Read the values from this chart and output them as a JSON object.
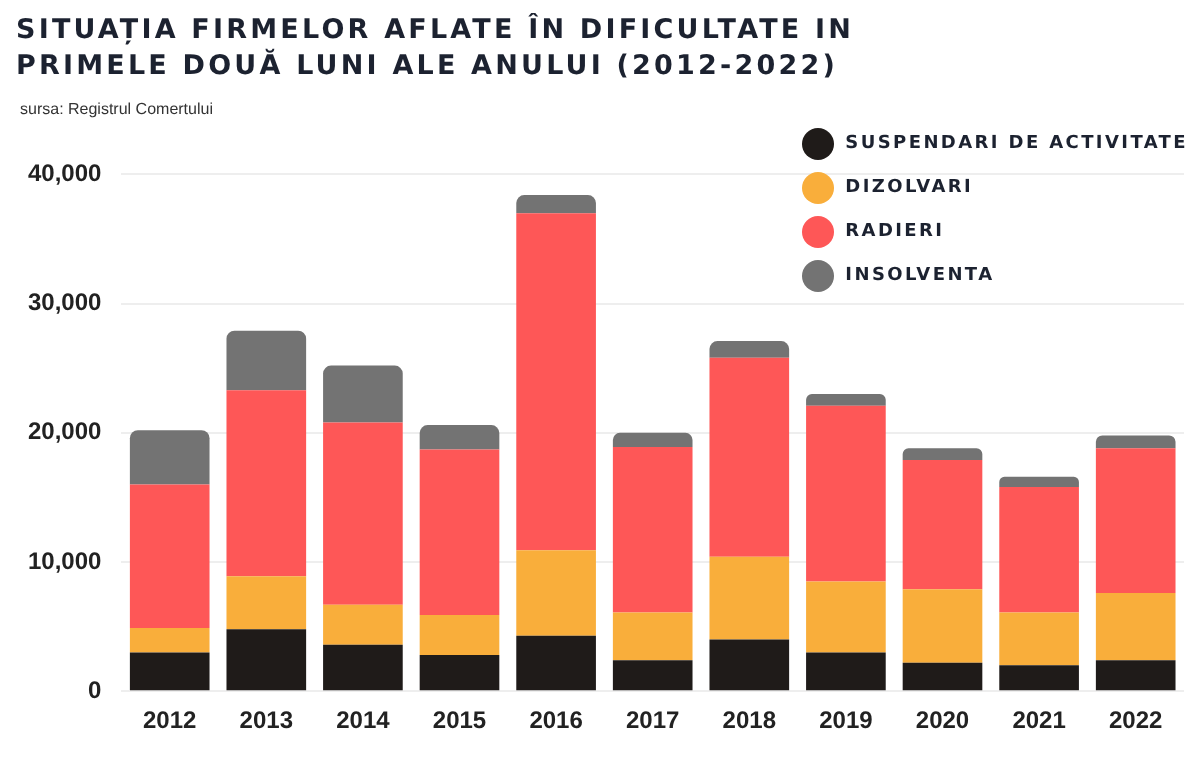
{
  "chart_data": {
    "type": "bar",
    "title": "SITUAȚIA FIRMELOR AFLATE ÎN DIFICULTATE IN PRIMELE DOUĂ LUNI ALE ANULUI (2012-2022)",
    "subtitle": "sursa: Registrul Comertului",
    "categories": [
      "2012",
      "2013",
      "2014",
      "2015",
      "2016",
      "2017",
      "2018",
      "2019",
      "2020",
      "2021",
      "2022"
    ],
    "series": [
      {
        "name": "SUSPENDARI DE ACTIVITATE",
        "color": "#1f1b19",
        "values": [
          3000,
          4800,
          3600,
          2800,
          4300,
          2400,
          4000,
          3000,
          2200,
          2000,
          2400
        ]
      },
      {
        "name": "DIZOLVARI",
        "color": "#f9ae3b",
        "values": [
          1900,
          4100,
          3100,
          3100,
          6600,
          3700,
          6400,
          5500,
          5700,
          4100,
          5200
        ]
      },
      {
        "name": "RADIERI",
        "color": "#fe5757",
        "values": [
          11100,
          14400,
          14100,
          12800,
          26100,
          12800,
          15400,
          13600,
          10000,
          9700,
          11200
        ]
      },
      {
        "name": "INSOLVENTA",
        "color": "#737373",
        "values": [
          4200,
          4600,
          4400,
          1900,
          1400,
          1100,
          1300,
          900,
          900,
          800,
          1000
        ]
      }
    ],
    "stacked": true,
    "ylim": [
      0,
      40000
    ],
    "yticks": [
      0,
      {
        "value": 10000,
        "label": "10,000"
      },
      {
        "value": 20000,
        "label": "20,000"
      },
      {
        "value": 30000,
        "label": "30,000"
      },
      {
        "value": 40000,
        "label": "40,000"
      }
    ],
    "grid": "y",
    "legend": "top right"
  }
}
